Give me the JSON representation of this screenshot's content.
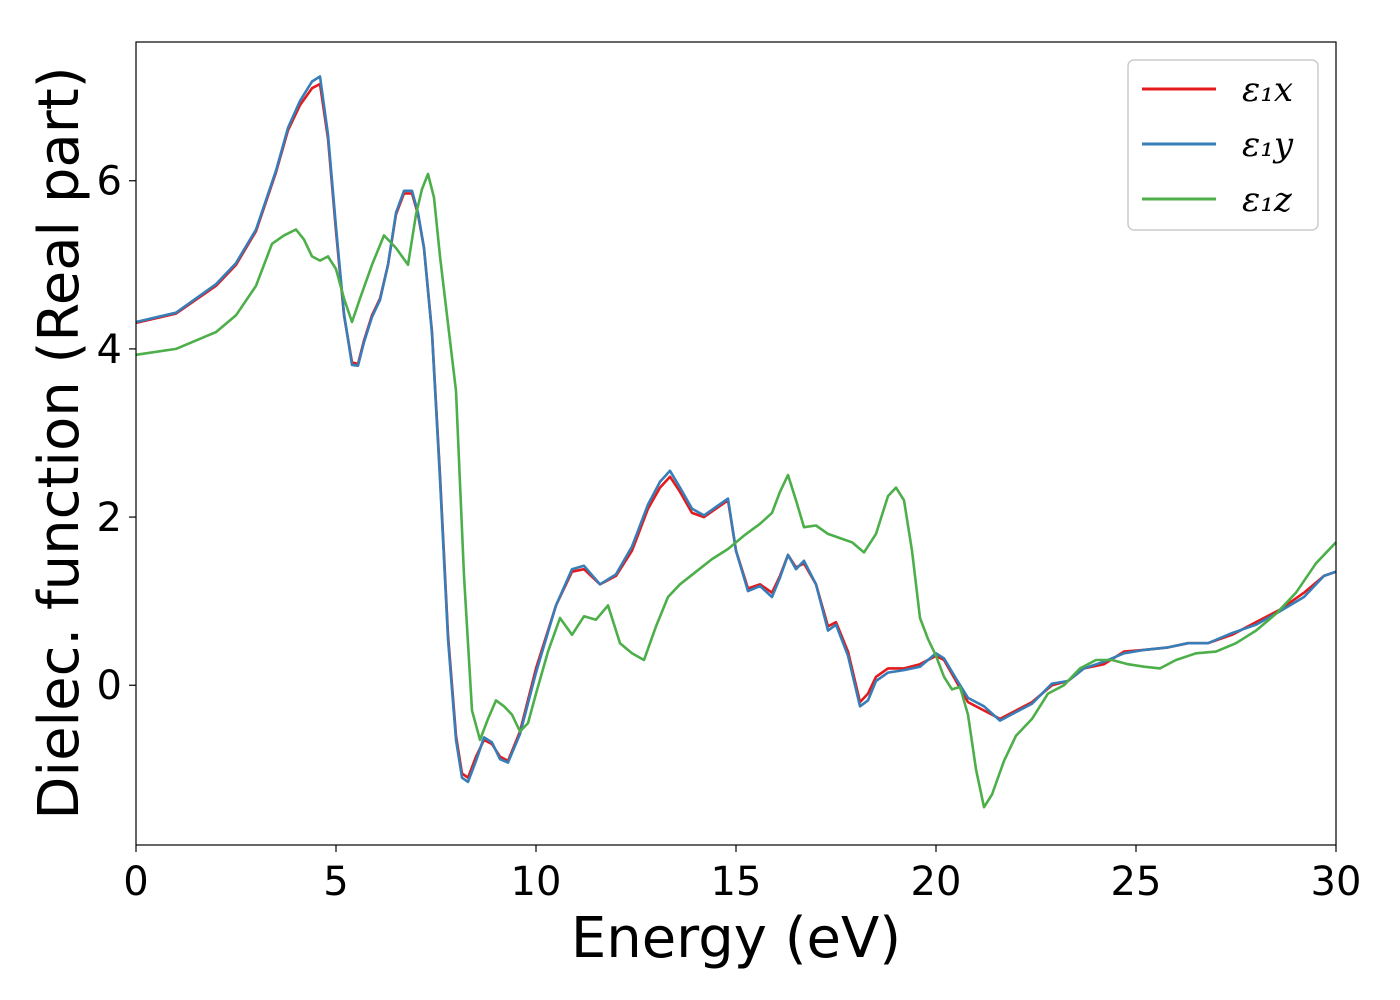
{
  "chart_data": {
    "type": "line",
    "title": "",
    "xlabel": "Energy (eV)",
    "ylabel": "Dielec. function (Real part)",
    "xlim": [
      0,
      30
    ],
    "ylim": [
      -1.9,
      7.65
    ],
    "xticks": [
      0,
      5,
      10,
      15,
      20,
      25,
      30
    ],
    "yticks": [
      0,
      2,
      4,
      6
    ],
    "grid": false,
    "legend_position": "upper right",
    "series": [
      {
        "name": "ε₁x",
        "color": "#e41a1c",
        "x": [
          0,
          1,
          2,
          2.5,
          3,
          3.5,
          3.8,
          4.1,
          4.4,
          4.6,
          4.8,
          5.0,
          5.2,
          5.4,
          5.55,
          5.7,
          5.9,
          6.1,
          6.3,
          6.5,
          6.7,
          6.9,
          7.05,
          7.2,
          7.4,
          7.6,
          7.8,
          8.0,
          8.15,
          8.3,
          8.5,
          8.7,
          8.9,
          9.1,
          9.3,
          9.6,
          10.0,
          10.5,
          10.9,
          11.2,
          11.6,
          12.0,
          12.4,
          12.8,
          13.1,
          13.35,
          13.6,
          13.9,
          14.2,
          14.5,
          14.8,
          15.0,
          15.3,
          15.6,
          15.9,
          16.1,
          16.3,
          16.5,
          16.7,
          17.0,
          17.3,
          17.5,
          17.8,
          18.1,
          18.3,
          18.5,
          18.8,
          19.2,
          19.6,
          20.0,
          20.2,
          20.5,
          20.8,
          21.2,
          21.6,
          22.0,
          22.4,
          22.9,
          23.3,
          23.7,
          24.2,
          24.7,
          25.2,
          25.8,
          26.3,
          26.8,
          27.4,
          28.0,
          28.6,
          29.2,
          29.7,
          30.0
        ],
        "values": [
          4.31,
          4.42,
          4.75,
          5.0,
          5.4,
          6.1,
          6.6,
          6.9,
          7.1,
          7.15,
          6.5,
          5.4,
          4.4,
          3.84,
          3.82,
          4.1,
          4.4,
          4.6,
          5.0,
          5.6,
          5.85,
          5.85,
          5.6,
          5.2,
          4.2,
          2.5,
          0.6,
          -0.6,
          -1.05,
          -1.1,
          -0.85,
          -0.65,
          -0.7,
          -0.85,
          -0.9,
          -0.55,
          0.2,
          0.95,
          1.35,
          1.38,
          1.2,
          1.3,
          1.6,
          2.1,
          2.35,
          2.48,
          2.3,
          2.05,
          2.0,
          2.1,
          2.2,
          1.6,
          1.15,
          1.2,
          1.1,
          1.3,
          1.55,
          1.4,
          1.45,
          1.2,
          0.7,
          0.75,
          0.4,
          -0.2,
          -0.1,
          0.1,
          0.2,
          0.2,
          0.25,
          0.35,
          0.3,
          0.05,
          -0.2,
          -0.3,
          -0.4,
          -0.3,
          -0.2,
          0.0,
          0.05,
          0.2,
          0.25,
          0.4,
          0.42,
          0.45,
          0.5,
          0.5,
          0.6,
          0.75,
          0.9,
          1.1,
          1.3,
          1.35
        ]
      },
      {
        "name": "ε₁y",
        "color": "#377eb8",
        "x": [
          0,
          1,
          2,
          2.5,
          3,
          3.5,
          3.8,
          4.1,
          4.4,
          4.6,
          4.8,
          5.0,
          5.2,
          5.4,
          5.55,
          5.7,
          5.9,
          6.1,
          6.3,
          6.5,
          6.7,
          6.9,
          7.05,
          7.2,
          7.4,
          7.6,
          7.8,
          8.0,
          8.15,
          8.3,
          8.5,
          8.7,
          8.9,
          9.1,
          9.3,
          9.6,
          10.0,
          10.5,
          10.9,
          11.2,
          11.6,
          12.0,
          12.4,
          12.8,
          13.1,
          13.35,
          13.6,
          13.9,
          14.2,
          14.5,
          14.8,
          15.0,
          15.3,
          15.6,
          15.9,
          16.1,
          16.3,
          16.5,
          16.7,
          17.0,
          17.3,
          17.5,
          17.8,
          18.1,
          18.3,
          18.5,
          18.8,
          19.2,
          19.6,
          20.0,
          20.2,
          20.5,
          20.8,
          21.2,
          21.6,
          22.0,
          22.4,
          22.9,
          23.3,
          23.7,
          24.2,
          24.7,
          25.2,
          25.8,
          26.3,
          26.8,
          27.4,
          28.0,
          28.6,
          29.2,
          29.7,
          30.0
        ],
        "values": [
          4.32,
          4.43,
          4.77,
          5.02,
          5.42,
          6.12,
          6.63,
          6.95,
          7.18,
          7.24,
          6.55,
          5.45,
          4.42,
          3.81,
          3.8,
          4.08,
          4.38,
          4.58,
          5.0,
          5.62,
          5.88,
          5.88,
          5.62,
          5.2,
          4.18,
          2.45,
          0.55,
          -0.65,
          -1.1,
          -1.15,
          -0.9,
          -0.62,
          -0.68,
          -0.88,
          -0.92,
          -0.58,
          0.15,
          0.95,
          1.38,
          1.42,
          1.2,
          1.32,
          1.65,
          2.15,
          2.42,
          2.55,
          2.35,
          2.1,
          2.02,
          2.12,
          2.22,
          1.6,
          1.12,
          1.18,
          1.05,
          1.28,
          1.55,
          1.38,
          1.48,
          1.2,
          0.65,
          0.72,
          0.35,
          -0.25,
          -0.18,
          0.05,
          0.15,
          0.18,
          0.22,
          0.38,
          0.32,
          0.08,
          -0.15,
          -0.25,
          -0.42,
          -0.32,
          -0.22,
          0.02,
          0.05,
          0.2,
          0.28,
          0.38,
          0.42,
          0.45,
          0.5,
          0.5,
          0.62,
          0.72,
          0.88,
          1.05,
          1.3,
          1.35
        ]
      },
      {
        "name": "ε₁z",
        "color": "#4daf4a",
        "x": [
          0,
          1,
          2,
          2.5,
          3,
          3.4,
          3.7,
          4.0,
          4.2,
          4.4,
          4.6,
          4.8,
          5.0,
          5.2,
          5.4,
          5.6,
          5.9,
          6.2,
          6.5,
          6.8,
          7.0,
          7.15,
          7.3,
          7.45,
          7.6,
          7.8,
          8.0,
          8.2,
          8.4,
          8.6,
          8.8,
          9.0,
          9.2,
          9.4,
          9.6,
          9.8,
          10.0,
          10.3,
          10.6,
          10.9,
          11.2,
          11.5,
          11.8,
          12.1,
          12.4,
          12.7,
          13.0,
          13.3,
          13.6,
          14.0,
          14.4,
          14.8,
          15.2,
          15.6,
          15.9,
          16.1,
          16.3,
          16.5,
          16.7,
          17.0,
          17.3,
          17.6,
          17.9,
          18.2,
          18.5,
          18.8,
          19.0,
          19.2,
          19.4,
          19.6,
          19.8,
          20.0,
          20.2,
          20.4,
          20.6,
          20.8,
          21.0,
          21.2,
          21.4,
          21.7,
          22.0,
          22.4,
          22.8,
          23.2,
          23.6,
          24.0,
          24.4,
          24.8,
          25.2,
          25.6,
          26.0,
          26.5,
          27.0,
          27.5,
          28.0,
          28.5,
          29.0,
          29.5,
          30.0
        ],
        "values": [
          3.93,
          4.0,
          4.2,
          4.4,
          4.75,
          5.25,
          5.35,
          5.42,
          5.3,
          5.1,
          5.05,
          5.1,
          4.95,
          4.6,
          4.32,
          4.6,
          5.0,
          5.35,
          5.2,
          5.0,
          5.6,
          5.9,
          6.08,
          5.8,
          5.1,
          4.3,
          3.5,
          1.3,
          -0.3,
          -0.65,
          -0.4,
          -0.18,
          -0.25,
          -0.35,
          -0.55,
          -0.45,
          -0.1,
          0.4,
          0.8,
          0.6,
          0.82,
          0.78,
          0.95,
          0.5,
          0.38,
          0.3,
          0.7,
          1.05,
          1.2,
          1.35,
          1.5,
          1.62,
          1.78,
          1.92,
          2.05,
          2.3,
          2.5,
          2.2,
          1.88,
          1.9,
          1.8,
          1.75,
          1.7,
          1.58,
          1.8,
          2.25,
          2.35,
          2.2,
          1.6,
          0.8,
          0.55,
          0.35,
          0.1,
          -0.05,
          -0.02,
          -0.35,
          -1.0,
          -1.45,
          -1.3,
          -0.9,
          -0.6,
          -0.4,
          -0.1,
          0.0,
          0.2,
          0.3,
          0.3,
          0.25,
          0.22,
          0.2,
          0.3,
          0.38,
          0.4,
          0.5,
          0.65,
          0.85,
          1.1,
          1.45,
          1.7
        ]
      }
    ]
  }
}
